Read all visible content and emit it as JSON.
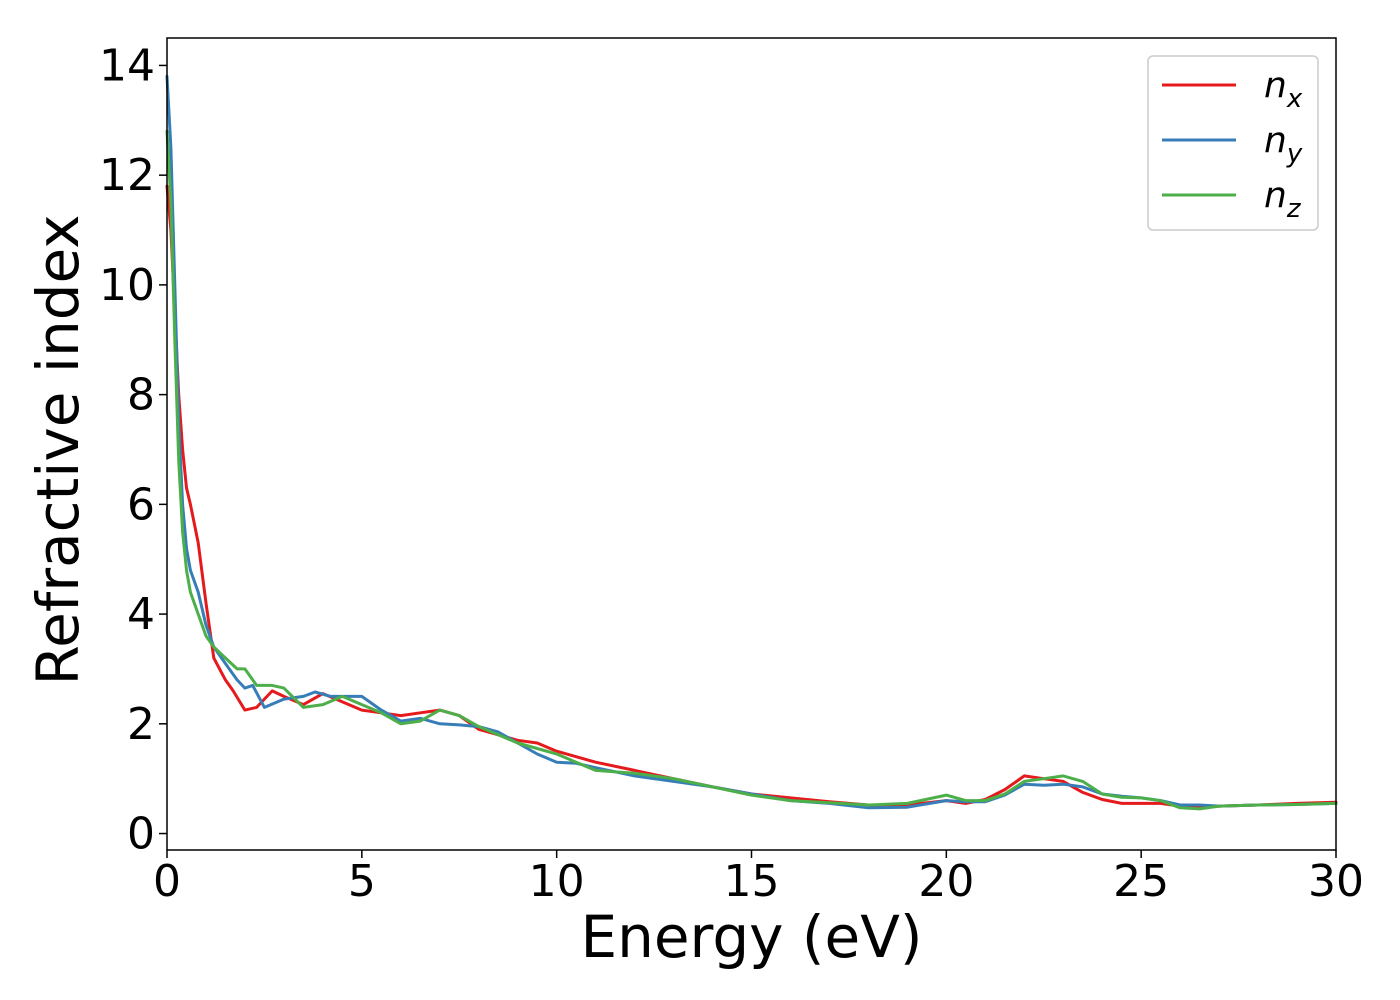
{
  "chart_data": {
    "type": "line",
    "title": "",
    "xlabel": "Energy (eV)",
    "ylabel": "Refractive index",
    "xlim": [
      0,
      30
    ],
    "ylim": [
      -0.3,
      14.5
    ],
    "xticks": [
      0,
      5,
      10,
      15,
      20,
      25,
      30
    ],
    "xtick_labels": [
      "0",
      "5",
      "10",
      "15",
      "20",
      "25",
      "30"
    ],
    "yticks": [
      0,
      2,
      4,
      6,
      8,
      10,
      12,
      14
    ],
    "ytick_labels": [
      "0",
      "2",
      "4",
      "6",
      "8",
      "10",
      "12",
      "14"
    ],
    "grid": false,
    "legend_position": "top-right",
    "series": [
      {
        "name": "n",
        "subscript": "x",
        "color": "#e41a1c",
        "x": [
          0,
          0.1,
          0.2,
          0.3,
          0.4,
          0.5,
          0.6,
          0.8,
          1.0,
          1.2,
          1.5,
          1.7,
          2.0,
          2.3,
          2.7,
          3.0,
          3.5,
          4.0,
          4.5,
          5.0,
          5.5,
          6.0,
          6.5,
          7.0,
          7.5,
          8.0,
          8.5,
          9.0,
          9.5,
          10.0,
          10.5,
          11.0,
          12.0,
          13.0,
          14.0,
          15.0,
          16.0,
          17.0,
          18.0,
          19.0,
          20.0,
          20.5,
          21.0,
          21.5,
          22.0,
          22.5,
          23.0,
          23.5,
          24.0,
          24.5,
          25.0,
          25.5,
          26.0,
          26.5,
          27.0,
          28.0,
          29.0,
          30.0
        ],
        "y": [
          11.8,
          11.0,
          9.5,
          8.0,
          7.0,
          6.3,
          6.0,
          5.3,
          4.2,
          3.2,
          2.8,
          2.6,
          2.25,
          2.3,
          2.6,
          2.5,
          2.35,
          2.55,
          2.4,
          2.25,
          2.2,
          2.15,
          2.2,
          2.25,
          2.15,
          1.9,
          1.8,
          1.7,
          1.65,
          1.5,
          1.4,
          1.3,
          1.15,
          1.0,
          0.85,
          0.72,
          0.65,
          0.58,
          0.52,
          0.52,
          0.6,
          0.55,
          0.62,
          0.8,
          1.05,
          1.0,
          0.95,
          0.75,
          0.62,
          0.55,
          0.55,
          0.55,
          0.5,
          0.48,
          0.5,
          0.52,
          0.55,
          0.57
        ]
      },
      {
        "name": "n",
        "subscript": "y",
        "color": "#377eb8",
        "x": [
          0,
          0.1,
          0.2,
          0.3,
          0.4,
          0.5,
          0.6,
          0.8,
          1.0,
          1.2,
          1.5,
          1.8,
          2.0,
          2.2,
          2.5,
          3.0,
          3.5,
          3.8,
          4.2,
          4.5,
          5.0,
          5.5,
          6.0,
          6.5,
          7.0,
          7.5,
          8.0,
          8.5,
          9.0,
          9.5,
          10.0,
          10.5,
          11.0,
          12.0,
          13.0,
          14.0,
          15.0,
          16.0,
          17.0,
          18.0,
          19.0,
          20.0,
          20.5,
          21.0,
          21.5,
          22.0,
          22.5,
          23.0,
          23.5,
          24.0,
          24.5,
          25.0,
          25.5,
          26.0,
          26.5,
          27.0,
          28.0,
          29.0,
          30.0
        ],
        "y": [
          13.8,
          12.5,
          10.0,
          7.5,
          6.0,
          5.2,
          4.8,
          4.4,
          3.8,
          3.4,
          3.1,
          2.8,
          2.65,
          2.7,
          2.3,
          2.45,
          2.5,
          2.58,
          2.5,
          2.5,
          2.5,
          2.25,
          2.05,
          2.1,
          2.0,
          1.98,
          1.95,
          1.85,
          1.65,
          1.45,
          1.3,
          1.28,
          1.2,
          1.05,
          0.95,
          0.85,
          0.72,
          0.6,
          0.55,
          0.47,
          0.48,
          0.6,
          0.58,
          0.58,
          0.7,
          0.9,
          0.88,
          0.9,
          0.85,
          0.72,
          0.68,
          0.65,
          0.6,
          0.52,
          0.52,
          0.5,
          0.52,
          0.53,
          0.55
        ]
      },
      {
        "name": "n",
        "subscript": "z",
        "color": "#4daf4a",
        "x": [
          0,
          0.1,
          0.2,
          0.3,
          0.4,
          0.5,
          0.6,
          0.8,
          1.0,
          1.2,
          1.5,
          1.8,
          2.0,
          2.3,
          2.7,
          3.0,
          3.5,
          4.0,
          4.5,
          5.0,
          5.5,
          6.0,
          6.5,
          7.0,
          7.5,
          8.0,
          8.5,
          9.0,
          9.5,
          10.0,
          10.5,
          11.0,
          12.0,
          13.0,
          14.0,
          15.0,
          16.0,
          17.0,
          18.0,
          19.0,
          20.0,
          20.5,
          21.0,
          21.5,
          22.0,
          22.5,
          23.0,
          23.5,
          24.0,
          24.5,
          25.0,
          25.5,
          26.0,
          26.5,
          27.0,
          28.0,
          29.0,
          30.0
        ],
        "y": [
          12.8,
          11.5,
          9.0,
          6.8,
          5.5,
          4.8,
          4.4,
          4.0,
          3.6,
          3.4,
          3.2,
          3.0,
          3.0,
          2.7,
          2.7,
          2.65,
          2.3,
          2.35,
          2.5,
          2.35,
          2.2,
          2.0,
          2.05,
          2.25,
          2.15,
          1.95,
          1.8,
          1.65,
          1.55,
          1.45,
          1.3,
          1.15,
          1.1,
          1.0,
          0.85,
          0.7,
          0.6,
          0.56,
          0.52,
          0.55,
          0.7,
          0.6,
          0.6,
          0.72,
          0.95,
          1.0,
          1.05,
          0.95,
          0.72,
          0.66,
          0.65,
          0.6,
          0.47,
          0.45,
          0.5,
          0.52,
          0.53,
          0.55
        ]
      }
    ]
  }
}
